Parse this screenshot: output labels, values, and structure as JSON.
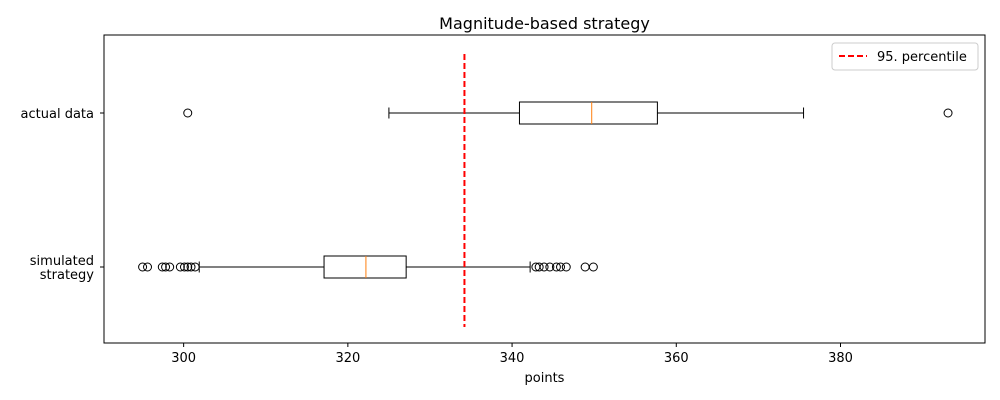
{
  "chart_data": {
    "type": "boxplot",
    "orientation": "horizontal",
    "title": "Magnitude-based strategy",
    "xlabel": "points",
    "ylabel": "",
    "xlim": [
      290.3,
      397.6
    ],
    "xticks": [
      300,
      320,
      340,
      360,
      380
    ],
    "categories": [
      "simulated\nstrategy",
      "actual data"
    ],
    "boxes": [
      {
        "whisker_low": 301.9,
        "q1": 317.1,
        "median": 322.2,
        "q3": 327.1,
        "whisker_high": 342.2,
        "outliers": [
          295.0,
          295.6,
          297.4,
          297.8,
          298.3,
          299.6,
          300.1,
          300.5,
          300.9,
          301.4,
          342.9,
          343.3,
          343.9,
          344.6,
          345.4,
          345.9,
          346.6,
          348.9,
          349.9
        ]
      },
      {
        "whisker_low": 325.0,
        "q1": 340.9,
        "median": 349.7,
        "q3": 357.7,
        "whisker_high": 375.5,
        "outliers": [
          300.5,
          393.1
        ]
      }
    ],
    "reference_lines": [
      {
        "name": "95. percentile",
        "x": 334.2,
        "color": "#ff0000",
        "style": "dashed"
      }
    ],
    "legend_position": "top-right",
    "colors": {
      "box": "#000000",
      "median": "#ff7f0e",
      "reference": "#ff0000"
    }
  }
}
